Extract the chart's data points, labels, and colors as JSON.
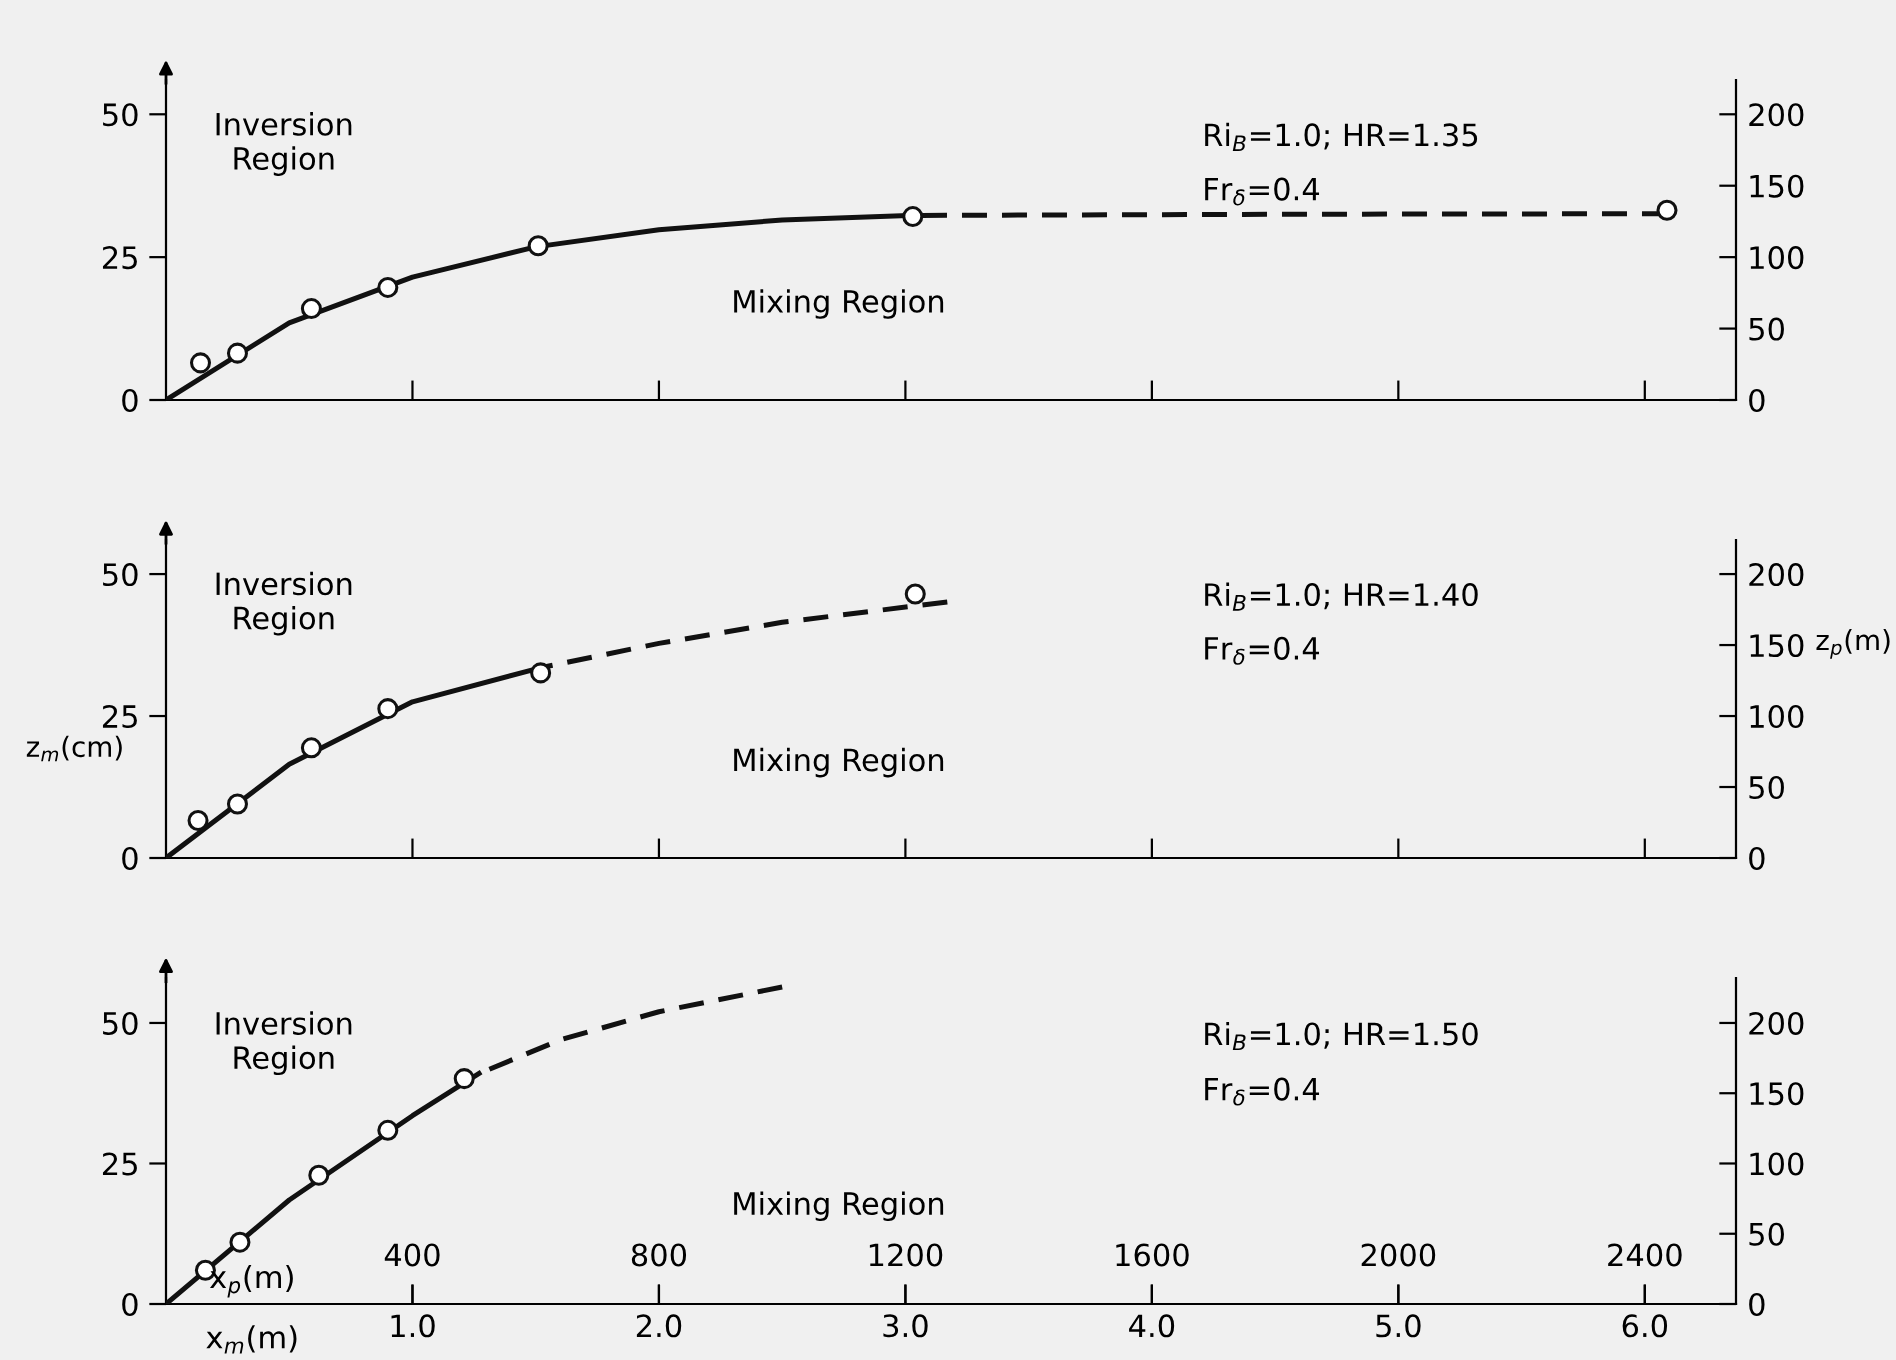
{
  "chart_data": [
    {
      "type": "line",
      "xlim": [
        0,
        6.37
      ],
      "xticks": [
        {
          "value": 1.0,
          "label": null
        },
        {
          "value": 2.0,
          "label": null
        },
        {
          "value": 3.0,
          "label": null
        },
        {
          "value": 4.0,
          "label": null
        },
        {
          "value": 5.0,
          "label": null
        },
        {
          "value": 6.0,
          "label": null
        }
      ],
      "ylim": [
        0,
        56
      ],
      "yticks": [
        0,
        25,
        50
      ],
      "y2lim": [
        0,
        224
      ],
      "y2ticks": [
        0,
        50,
        100,
        150,
        200
      ],
      "tick_labels": "y",
      "grid": false,
      "annotations": [
        "Inversion\nRegion",
        "Mixing Region",
        "Ri$_{B}$=1.0; HR=1.35",
        "Fr$_{δ}$=0.4"
      ],
      "series": [
        {
          "type": "scatter",
          "marker": "circle",
          "color": "#111111",
          "x": [
            0.14,
            0.29,
            0.59,
            0.9,
            1.51,
            3.03,
            6.09
          ],
          "values": [
            6.5,
            8.2,
            16.0,
            19.7,
            27.0,
            32.1,
            33.2
          ]
        },
        {
          "line_style": "solid",
          "color": "#111111",
          "x": [
            0,
            0.5,
            1.0,
            1.5,
            2.0,
            2.5,
            3.03
          ],
          "values": [
            0,
            13.5,
            21.5,
            26.8,
            29.8,
            31.5,
            32.3
          ]
        },
        {
          "line_style": "dashed",
          "color": "#111111",
          "x": [
            3.03,
            4.5,
            6.09
          ],
          "values": [
            32.3,
            32.5,
            32.6
          ]
        }
      ]
    },
    {
      "type": "line",
      "xlim": [
        0,
        6.37
      ],
      "xticks": [
        {
          "value": 1.0,
          "label": null
        },
        {
          "value": 2.0,
          "label": null
        },
        {
          "value": 3.0,
          "label": null
        },
        {
          "value": 4.0,
          "label": null
        },
        {
          "value": 5.0,
          "label": null
        },
        {
          "value": 6.0,
          "label": null
        }
      ],
      "ylim": [
        0,
        56
      ],
      "yticks": [
        0,
        25,
        50
      ],
      "y2lim": [
        0,
        224
      ],
      "y2ticks": [
        0,
        50,
        100,
        150,
        200
      ],
      "tick_labels": "y",
      "grid": false,
      "ylabel": "z$_{m}$(cm)",
      "y2label": "z$_{p}$(m)",
      "annotations": [
        "Inversion\nRegion",
        "Mixing Region",
        "Ri$_{B}$=1.0; HR=1.40",
        "Fr$_{δ}$=0.4"
      ],
      "series": [
        {
          "type": "scatter",
          "marker": "circle",
          "color": "#111111",
          "x": [
            0.13,
            0.29,
            0.59,
            0.9,
            1.52,
            3.04
          ],
          "values": [
            6.6,
            9.5,
            19.4,
            26.3,
            32.6,
            46.5
          ]
        },
        {
          "line_style": "solid",
          "color": "#111111",
          "x": [
            0,
            0.5,
            1.0,
            1.52
          ],
          "values": [
            0,
            16.5,
            27.5,
            33.5
          ]
        },
        {
          "line_style": "dashed",
          "color": "#111111",
          "x": [
            1.52,
            2.0,
            2.5,
            3.17
          ],
          "values": [
            33.5,
            37.8,
            41.5,
            45.1
          ]
        }
      ]
    },
    {
      "type": "line",
      "xlim": [
        0,
        6.37
      ],
      "xticks": [
        {
          "value": 1.0,
          "label": "1.0"
        },
        {
          "value": 2.0,
          "label": "2.0"
        },
        {
          "value": 3.0,
          "label": "3.0"
        },
        {
          "value": 4.0,
          "label": "4.0"
        },
        {
          "value": 5.0,
          "label": "5.0"
        },
        {
          "value": 6.0,
          "label": "6.0"
        }
      ],
      "x2lim": [
        0,
        2548
      ],
      "x2ticks": [
        400,
        800,
        1200,
        1600,
        2000,
        2400
      ],
      "ylim": [
        0,
        58
      ],
      "yticks": [
        0,
        25,
        50
      ],
      "y2lim": [
        0,
        232
      ],
      "y2ticks": [
        0,
        50,
        100,
        150,
        200
      ],
      "grid": false,
      "xlabel": "x$_{m}$(m)",
      "x2label": "x$_{p}$(m)",
      "annotations": [
        "Inversion\nRegion",
        "Mixing Region",
        "Ri$_{B}$=1.0; HR=1.50",
        "Fr$_{δ}$=0.4"
      ],
      "series": [
        {
          "type": "scatter",
          "marker": "circle",
          "color": "#111111",
          "x": [
            0.16,
            0.3,
            0.62,
            0.9,
            1.21
          ],
          "values": [
            6.0,
            11.0,
            22.9,
            30.9,
            40.1
          ]
        },
        {
          "line_style": "solid",
          "color": "#111111",
          "x": [
            0,
            0.5,
            1.0,
            1.27
          ],
          "values": [
            0,
            18.5,
            33.5,
            41.0
          ]
        },
        {
          "line_style": "dashed",
          "color": "#111111",
          "x": [
            1.27,
            1.6,
            2.0,
            2.5
          ],
          "values": [
            41.0,
            47.0,
            52.0,
            56.4
          ]
        }
      ]
    }
  ]
}
